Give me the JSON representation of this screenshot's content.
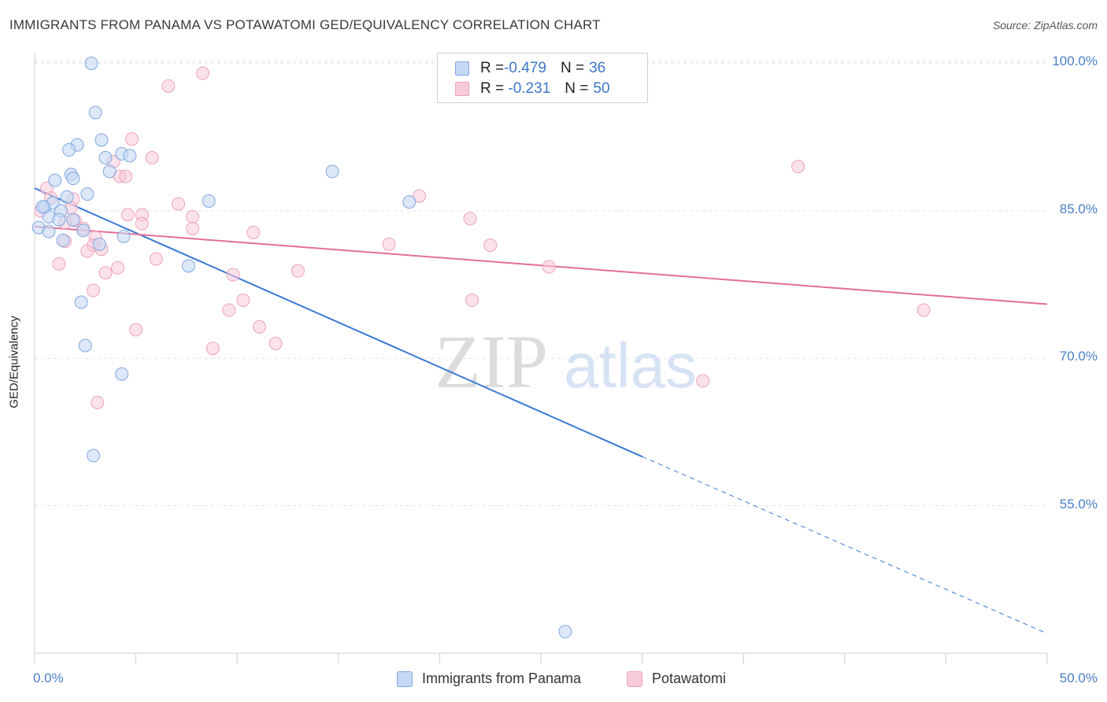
{
  "title": "IMMIGRANTS FROM PANAMA VS POTAWATOMI GED/EQUIVALENCY CORRELATION CHART",
  "source": "Source: ZipAtlas.com",
  "legend": {
    "rows": [
      {
        "r_label": "R = ",
        "r_value": "-0.479",
        "n_label": "N = ",
        "n_value": "36"
      },
      {
        "r_label": "R = ",
        "r_value": " -0.231",
        "n_label": "N = ",
        "n_value": "50"
      }
    ]
  },
  "colors": {
    "panama_fill": "#c5d8f3",
    "panama_stroke": "#7fa7e0",
    "panama_line": "#3a78d4",
    "pota_fill": "#f8cbd9",
    "pota_stroke": "#eea2bb",
    "pota_line": "#e36f97",
    "tick_text": "#4a7fc9",
    "grid": "#e2e2e2"
  },
  "watermark": {
    "zip": "ZIP",
    "atlas": "atlas"
  },
  "chart_data": {
    "type": "scatter",
    "title": "IMMIGRANTS FROM PANAMA VS POTAWATOMI GED/EQUIVALENCY CORRELATION CHART",
    "xlabel": "",
    "ylabel": "GED/Equivalency",
    "xlim": [
      0,
      50
    ],
    "ylim": [
      40,
      101
    ],
    "x_tick_labels": [
      "0.0%",
      "50.0%"
    ],
    "y_ticks": [
      100,
      85,
      70,
      55
    ],
    "y_tick_labels": [
      "100.0%",
      "85.0%",
      "70.0%",
      "55.0%"
    ],
    "series": [
      {
        "name": "Immigrants from Panama",
        "R": -0.479,
        "N": 36,
        "trend": {
          "x0": 0,
          "y0": 87.3,
          "x1": 30,
          "y1": 60.0,
          "dash_to_x": 50,
          "dash_to_y": 42.0
        },
        "points": [
          [
            2.8,
            100.0
          ],
          [
            3.0,
            95.0
          ],
          [
            2.1,
            91.7
          ],
          [
            1.7,
            91.2
          ],
          [
            3.3,
            92.2
          ],
          [
            4.3,
            90.8
          ],
          [
            4.7,
            90.6
          ],
          [
            3.5,
            90.4
          ],
          [
            1.8,
            88.7
          ],
          [
            1.9,
            88.3
          ],
          [
            3.7,
            89.0
          ],
          [
            1.0,
            88.1
          ],
          [
            2.6,
            86.7
          ],
          [
            1.6,
            86.4
          ],
          [
            0.5,
            85.4
          ],
          [
            0.9,
            85.8
          ],
          [
            1.3,
            85.0
          ],
          [
            0.7,
            84.4
          ],
          [
            1.2,
            84.1
          ],
          [
            1.9,
            84.1
          ],
          [
            0.2,
            83.3
          ],
          [
            0.7,
            82.9
          ],
          [
            2.4,
            83.0
          ],
          [
            4.4,
            82.4
          ],
          [
            1.4,
            82.0
          ],
          [
            3.2,
            81.6
          ],
          [
            0.4,
            85.4
          ],
          [
            8.6,
            86.0
          ],
          [
            7.6,
            79.4
          ],
          [
            14.7,
            89.0
          ],
          [
            18.5,
            85.9
          ],
          [
            2.3,
            75.7
          ],
          [
            2.5,
            71.3
          ],
          [
            4.3,
            68.4
          ],
          [
            2.9,
            60.1
          ],
          [
            26.2,
            42.2
          ]
        ]
      },
      {
        "name": "Potawatomi",
        "R": -0.231,
        "N": 50,
        "trend": {
          "x0": 0,
          "y0": 83.4,
          "x1": 50,
          "y1": 75.5
        },
        "points": [
          [
            8.3,
            99.0
          ],
          [
            6.6,
            97.7
          ],
          [
            4.8,
            92.3
          ],
          [
            5.8,
            90.4
          ],
          [
            3.9,
            90.0
          ],
          [
            4.2,
            88.5
          ],
          [
            4.5,
            88.5
          ],
          [
            0.6,
            87.3
          ],
          [
            1.9,
            86.2
          ],
          [
            0.8,
            86.3
          ],
          [
            7.1,
            85.7
          ],
          [
            1.8,
            85.3
          ],
          [
            5.3,
            84.6
          ],
          [
            4.6,
            84.6
          ],
          [
            7.8,
            84.4
          ],
          [
            2.0,
            84.0
          ],
          [
            1.5,
            83.8
          ],
          [
            5.3,
            83.7
          ],
          [
            2.4,
            83.2
          ],
          [
            7.8,
            83.2
          ],
          [
            10.8,
            82.8
          ],
          [
            3.0,
            82.3
          ],
          [
            1.5,
            81.9
          ],
          [
            2.9,
            81.5
          ],
          [
            3.3,
            81.1
          ],
          [
            2.6,
            80.9
          ],
          [
            6.0,
            80.1
          ],
          [
            1.2,
            79.6
          ],
          [
            4.1,
            79.2
          ],
          [
            3.5,
            78.7
          ],
          [
            9.8,
            78.5
          ],
          [
            13.0,
            78.9
          ],
          [
            2.9,
            76.9
          ],
          [
            10.3,
            75.9
          ],
          [
            9.6,
            74.9
          ],
          [
            11.1,
            73.2
          ],
          [
            5.0,
            72.9
          ],
          [
            11.9,
            71.5
          ],
          [
            8.8,
            71.0
          ],
          [
            3.1,
            65.5
          ],
          [
            19.0,
            86.5
          ],
          [
            17.5,
            81.6
          ],
          [
            21.5,
            84.2
          ],
          [
            22.5,
            81.5
          ],
          [
            21.6,
            75.9
          ],
          [
            25.4,
            79.3
          ],
          [
            33.0,
            67.7
          ],
          [
            37.7,
            89.5
          ],
          [
            43.9,
            74.9
          ],
          [
            0.3,
            85.0
          ]
        ]
      }
    ]
  }
}
